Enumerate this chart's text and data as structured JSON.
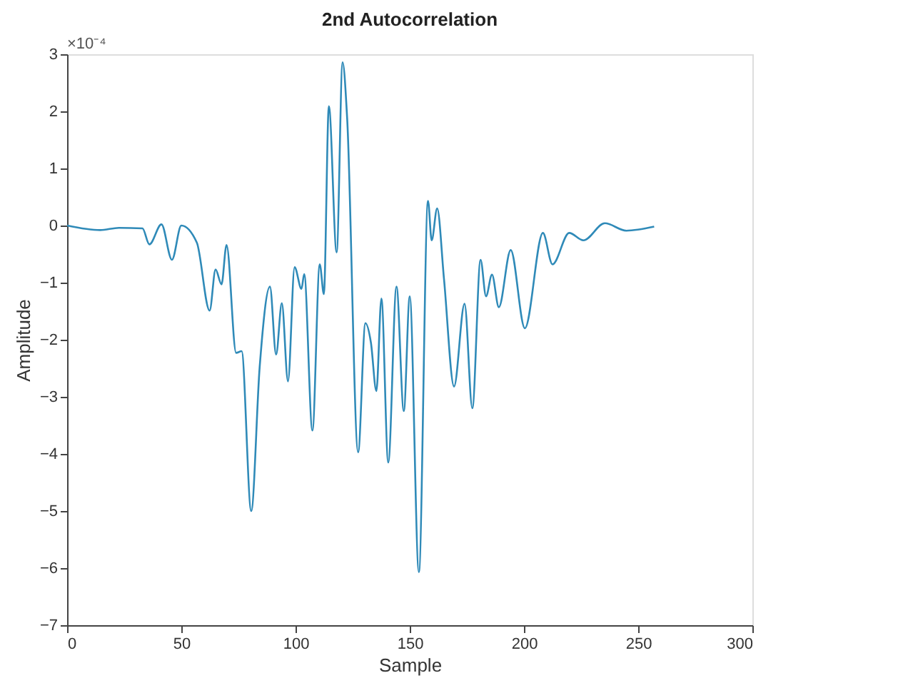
{
  "chart_data": {
    "type": "line",
    "title": "2nd Autocorrelation",
    "xlabel": "Sample",
    "ylabel": "Amplitude",
    "annotations": [
      "×10⁻⁴"
    ],
    "x": [
      0,
      14.5,
      22.7,
      33,
      36,
      41.3,
      45.9,
      50,
      56.8,
      62.4,
      65,
      67.6,
      69.8,
      74,
      76.4,
      80.6,
      84.3,
      88.8,
      91.5,
      94,
      96.7,
      99.6,
      102.6,
      103.8,
      107.4,
      110.6,
      112.4,
      114.6,
      118,
      120.6,
      122.6,
      127.4,
      130.6,
      133,
      135.4,
      137.6,
      140.6,
      144.2,
      147.4,
      150,
      154,
      158,
      159.6,
      162,
      165,
      169.4,
      174,
      177.4,
      181,
      183.4,
      186,
      189,
      194.2,
      200.4,
      208.3,
      212.5,
      219.8,
      226,
      235.4,
      244.8,
      257
    ],
    "series": [
      {
        "color": "#2f8ab8",
        "values": [
          0,
          -0.08,
          -0.04,
          -0.05,
          -0.33,
          0.02,
          -0.6,
          0,
          -0.3,
          -1.49,
          -0.77,
          -1.03,
          -0.34,
          -2.23,
          -2.2,
          -5.0,
          -2.48,
          -1.07,
          -2.26,
          -1.36,
          -2.73,
          -0.73,
          -1.11,
          -0.85,
          -3.59,
          -0.68,
          -1.2,
          2.09,
          -0.47,
          2.86,
          1.88,
          -3.97,
          -1.71,
          -2.05,
          -2.9,
          -1.28,
          -4.15,
          -1.07,
          -3.25,
          -1.24,
          -6.07,
          0.43,
          -0.26,
          0.3,
          -0.94,
          -2.82,
          -1.37,
          -3.2,
          -0.6,
          -1.24,
          -0.86,
          -1.43,
          -0.43,
          -1.8,
          -0.13,
          -0.68,
          -0.13,
          -0.26,
          0.04,
          -0.09,
          -0.02
        ]
      }
    ],
    "xlim": [
      0,
      300
    ],
    "xticks": [
      0,
      50,
      100,
      150,
      200,
      250,
      300
    ],
    "ylim": [
      -7,
      3
    ],
    "yticks": [
      -7,
      -6,
      -5,
      -4,
      -3,
      -2,
      -1,
      0,
      1,
      2,
      3
    ],
    "grid": false,
    "marker": "none",
    "line_style": "solid"
  }
}
